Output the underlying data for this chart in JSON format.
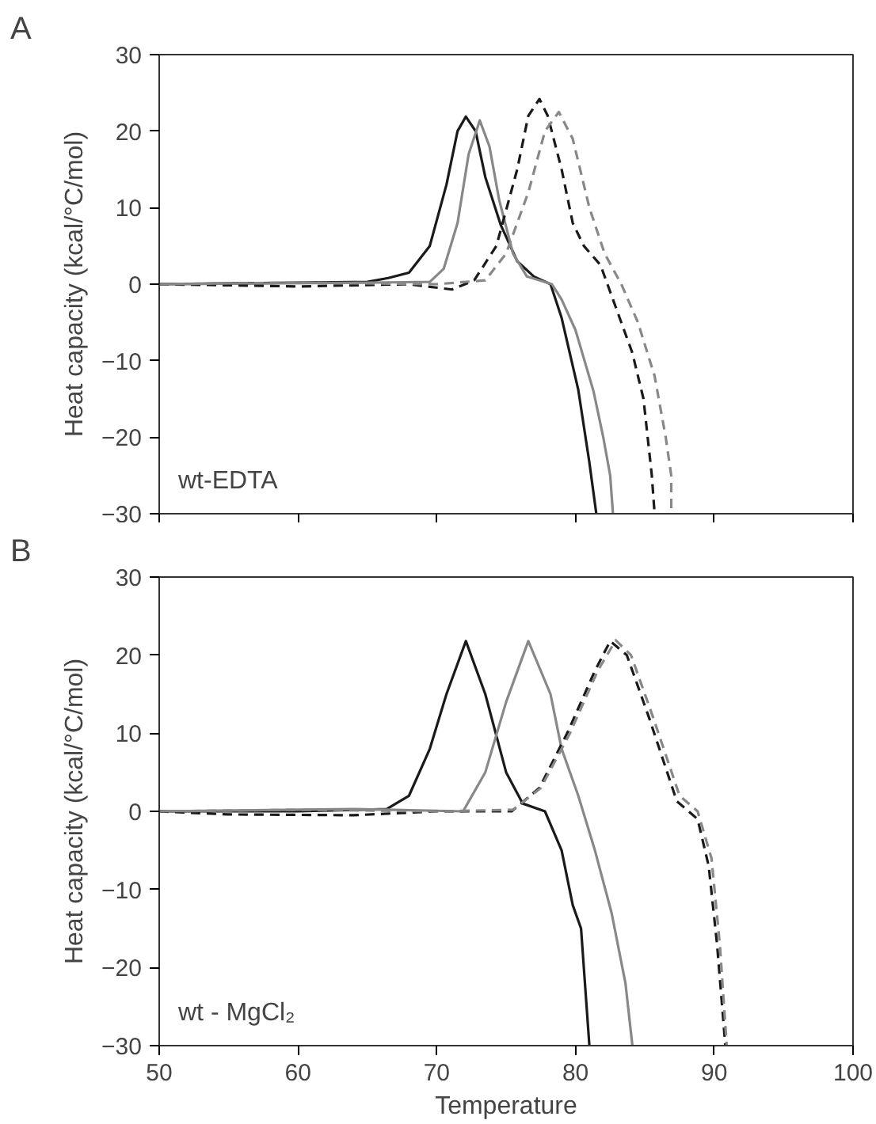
{
  "chart_data": [
    {
      "type": "line",
      "title": "A",
      "ylabel": "Heat capacity (kcal/°C/mol)",
      "annotations": [
        "wt-EDTA"
      ],
      "xlim": [
        50,
        100
      ],
      "xticks": [
        50,
        60,
        70,
        80,
        90,
        100
      ],
      "ylim": [
        -30,
        30
      ],
      "yticks": [
        -30,
        -20,
        -10,
        0,
        10,
        20,
        30
      ],
      "tick_labels": "y",
      "grid": false,
      "series": [
        {
          "color": "#1a1a1a",
          "line_style": "solid",
          "x": [
            50,
            60,
            65,
            66.5,
            68,
            69.5,
            70.7,
            71.5,
            72.1,
            72.8,
            73.5,
            74.6,
            75.8,
            77,
            78.2,
            79,
            80.2,
            81,
            81.5
          ],
          "values": [
            0,
            0.2,
            0.3,
            0.8,
            1.5,
            5,
            13,
            20,
            21.9,
            20,
            14,
            7.8,
            3,
            1,
            0,
            -4.4,
            -13.8,
            -23.3,
            -30
          ]
        },
        {
          "color": "#888888",
          "line_style": "solid",
          "x": [
            50,
            65,
            69.5,
            70.5,
            71.5,
            72.3,
            73.1,
            73.8,
            74.5,
            75.5,
            76.5,
            78.3,
            79,
            80,
            81.3,
            82,
            82.5,
            82.7
          ],
          "values": [
            0,
            0.2,
            0.3,
            2,
            8,
            17,
            21.4,
            18,
            11,
            4,
            1,
            0,
            -2,
            -6,
            -14,
            -20,
            -25,
            -30
          ]
        },
        {
          "color": "#1a1a1a",
          "line_style": "dashed",
          "x": [
            50,
            60,
            68,
            71.1,
            72.7,
            74.3,
            75.8,
            76.6,
            77.4,
            78,
            79,
            79.8,
            80.6,
            81.8,
            82.9,
            84.1,
            84.9,
            85.5,
            85.7
          ],
          "values": [
            0,
            -0.3,
            0,
            -0.7,
            0.5,
            5,
            15,
            22,
            24.2,
            22,
            15,
            8,
            5,
            2.5,
            -3,
            -9,
            -15,
            -25,
            -30
          ]
        },
        {
          "color": "#888888",
          "line_style": "dashed",
          "x": [
            50,
            60,
            70,
            73.5,
            75,
            76.6,
            77.8,
            78.8,
            79.8,
            81,
            82.1,
            83.3,
            84.5,
            85.7,
            86.5,
            86.9,
            86.9
          ],
          "values": [
            0,
            0.2,
            0,
            0.5,
            4,
            12,
            20,
            22.5,
            19,
            10,
            4,
            0,
            -5,
            -12,
            -20,
            -25,
            -30
          ]
        }
      ]
    },
    {
      "type": "line",
      "title": "B",
      "xlabel": "Temperature",
      "ylabel": "Heat capacity (kcal/°C/mol)",
      "annotations": [
        "wt - MgCl₂"
      ],
      "xlim": [
        50,
        100
      ],
      "xticks": [
        50,
        60,
        70,
        80,
        90,
        100
      ],
      "ylim": [
        -30,
        30
      ],
      "yticks": [
        -30,
        -20,
        -10,
        0,
        10,
        20,
        30
      ],
      "grid": false,
      "series": [
        {
          "color": "#1a1a1a",
          "line_style": "solid",
          "x": [
            50,
            60,
            66.4,
            68,
            69.5,
            70.7,
            72.1,
            73.5,
            75,
            76.2,
            77.8,
            79,
            79.8,
            80.4,
            81
          ],
          "values": [
            0,
            0,
            0.3,
            2,
            8,
            15,
            21.8,
            15,
            5,
            1,
            0,
            -5,
            -12,
            -15,
            -30
          ]
        },
        {
          "color": "#888888",
          "line_style": "solid",
          "x": [
            50,
            64,
            71.9,
            73.5,
            75,
            76.6,
            78.2,
            79,
            80.2,
            81.4,
            82.6,
            83.6,
            84.1
          ],
          "values": [
            0,
            0.3,
            0,
            5,
            14,
            21.8,
            15,
            8,
            2,
            -5,
            -13,
            -22,
            -30
          ]
        },
        {
          "color": "#1a1a1a",
          "line_style": "dashed",
          "x": [
            50,
            55,
            64,
            70,
            75.4,
            77.4,
            79.4,
            81.4,
            82.5,
            83.7,
            85.3,
            87.3,
            88.8,
            89.6,
            90.2,
            90.8
          ],
          "values": [
            0,
            -0.4,
            -0.5,
            0,
            0,
            3,
            10,
            18,
            21.8,
            20,
            12,
            1.3,
            -1,
            -7,
            -17,
            -30
          ]
        },
        {
          "color": "#888888",
          "line_style": "dashed",
          "x": [
            50,
            60,
            70,
            75.5,
            77.5,
            79.6,
            81.6,
            82.9,
            84,
            85.6,
            87.5,
            88.8,
            89.8,
            90.4,
            90.9
          ],
          "values": [
            0,
            0.2,
            0,
            0.2,
            3,
            10,
            18,
            21.9,
            20,
            12,
            2,
            0,
            -6,
            -17,
            -30
          ]
        }
      ]
    }
  ]
}
